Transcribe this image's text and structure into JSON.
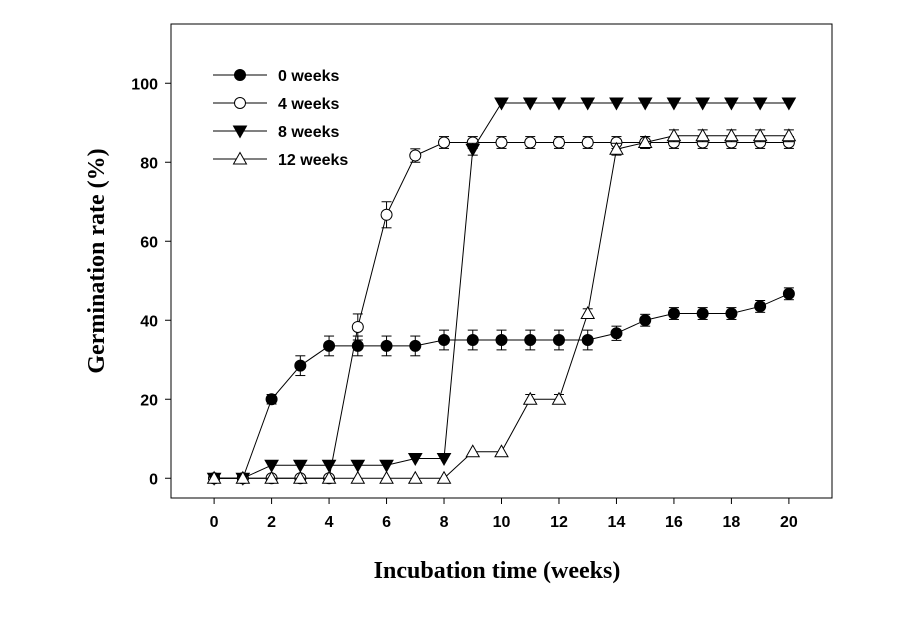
{
  "chart_data": {
    "type": "line",
    "title": "",
    "xlabel": "Incubation time (weeks)",
    "ylabel": "Germination rate (%)",
    "xlim": [
      -1.5,
      21.5
    ],
    "ylim": [
      -5,
      115
    ],
    "xticks": [
      0,
      2,
      4,
      6,
      8,
      10,
      12,
      14,
      16,
      18,
      20
    ],
    "yticks": [
      0,
      20,
      40,
      60,
      80,
      100
    ],
    "grid": false,
    "legend_position": "top-left",
    "series": [
      {
        "name": "0 weeks",
        "marker": "filled-circle",
        "x": [
          0,
          1,
          2,
          3,
          4,
          5,
          6,
          7,
          8,
          9,
          10,
          11,
          12,
          13,
          14,
          15,
          16,
          17,
          18,
          19,
          20
        ],
        "y": [
          0,
          0,
          20,
          28.5,
          33.5,
          33.5,
          33.5,
          33.5,
          35,
          35,
          35,
          35,
          35,
          35,
          36.7,
          40,
          41.7,
          41.7,
          41.7,
          43.5,
          46.7
        ],
        "err": [
          0,
          0,
          1.2,
          2.5,
          2.5,
          2.5,
          2.5,
          2.5,
          2.5,
          2.5,
          2.5,
          2.5,
          2.5,
          2.5,
          1.8,
          1.5,
          1.5,
          1.5,
          1.5,
          1.5,
          1.5
        ]
      },
      {
        "name": "4 weeks",
        "marker": "open-circle",
        "x": [
          0,
          1,
          2,
          3,
          4,
          5,
          6,
          7,
          8,
          9,
          10,
          11,
          12,
          13,
          14,
          15,
          16,
          17,
          18,
          19,
          20
        ],
        "y": [
          0,
          0,
          0,
          0,
          0,
          38.3,
          66.7,
          81.7,
          85,
          85,
          85,
          85,
          85,
          85,
          85,
          85,
          85,
          85,
          85,
          85,
          85
        ],
        "err": [
          0,
          0,
          0,
          0,
          0,
          3.3,
          3.3,
          1.7,
          1.5,
          1.5,
          1.5,
          1.5,
          1.5,
          1.5,
          1.5,
          1.5,
          1.5,
          1.5,
          1.5,
          1.5,
          1.5
        ]
      },
      {
        "name": "8 weeks",
        "marker": "filled-triangle-down",
        "x": [
          0,
          1,
          2,
          3,
          4,
          5,
          6,
          7,
          8,
          9,
          10,
          11,
          12,
          13,
          14,
          15,
          16,
          17,
          18,
          19,
          20
        ],
        "y": [
          0,
          0,
          3.3,
          3.3,
          3.3,
          3.3,
          3.3,
          5,
          5,
          83.3,
          95,
          95,
          95,
          95,
          95,
          95,
          95,
          95,
          95,
          95,
          95
        ],
        "err": [
          0,
          0,
          0,
          0,
          0,
          0,
          0,
          0,
          0,
          1.5,
          0,
          0,
          0,
          0,
          0,
          0,
          0,
          0,
          0,
          0,
          0
        ]
      },
      {
        "name": "12 weeks",
        "marker": "open-triangle-up",
        "x": [
          0,
          1,
          2,
          3,
          4,
          5,
          6,
          7,
          8,
          9,
          10,
          11,
          12,
          13,
          14,
          15,
          16,
          17,
          18,
          19,
          20
        ],
        "y": [
          0,
          0,
          0,
          0,
          0,
          0,
          0,
          0,
          0,
          6.7,
          6.7,
          20,
          20,
          41.7,
          83.3,
          85,
          86.7,
          86.7,
          86.7,
          86.7,
          86.7
        ],
        "err": [
          0,
          0,
          0,
          0,
          0,
          0,
          0,
          0,
          0,
          0,
          0,
          1.2,
          1.2,
          1.2,
          1.5,
          1.5,
          1.5,
          1.5,
          1.5,
          1.5,
          1.5
        ]
      }
    ]
  }
}
